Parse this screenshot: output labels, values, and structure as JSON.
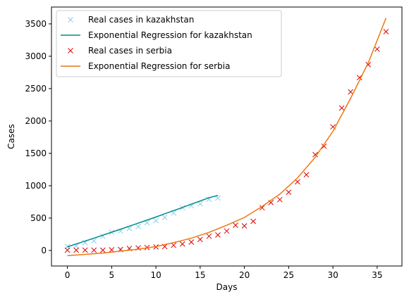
{
  "chart_data": {
    "type": "scatter",
    "title": "",
    "xlabel": "Days",
    "ylabel": "Cases",
    "xlim": [
      -1.8,
      37.8
    ],
    "ylim": [
      -240,
      3760
    ],
    "xticks": [
      0,
      5,
      10,
      15,
      20,
      25,
      30,
      35
    ],
    "yticks": [
      0,
      500,
      1000,
      1500,
      2000,
      2500,
      3000,
      3500
    ],
    "grid": false,
    "legend_position": "top-left",
    "series": [
      {
        "name": "Real cases in kazakhstan",
        "kind": "marker",
        "marker": "x",
        "color": "#87ceeb",
        "x": [
          0,
          1,
          2,
          3,
          4,
          5,
          6,
          7,
          8,
          9,
          10,
          11,
          12,
          13,
          14,
          15,
          16,
          17
        ],
        "y": [
          60,
          70,
          120,
          150,
          220,
          280,
          300,
          340,
          370,
          430,
          460,
          510,
          580,
          660,
          690,
          720,
          790,
          810
        ]
      },
      {
        "name": "Exponential Regression for kazakhstan",
        "kind": "line",
        "color": "#008b8b",
        "x": [
          0,
          1,
          2,
          3,
          4,
          5,
          6,
          7,
          8,
          9,
          10,
          11,
          12,
          13,
          14,
          15,
          16,
          17
        ],
        "y": [
          55,
          100,
          145,
          190,
          236,
          282,
          328,
          375,
          422,
          469,
          517,
          566,
          615,
          664,
          714,
          764,
          815,
          850
        ]
      },
      {
        "name": "Real cases in serbia",
        "kind": "marker",
        "marker": "x",
        "color": "#dd0000",
        "x": [
          0,
          1,
          2,
          3,
          4,
          5,
          6,
          7,
          8,
          9,
          10,
          11,
          12,
          13,
          14,
          15,
          16,
          17,
          18,
          19,
          20,
          21,
          22,
          23,
          24,
          25,
          26,
          27,
          28,
          29,
          30,
          31,
          32,
          33,
          34,
          35,
          36
        ],
        "y": [
          5,
          5,
          5,
          5,
          5,
          10,
          15,
          30,
          40,
          45,
          55,
          60,
          80,
          100,
          130,
          170,
          220,
          240,
          300,
          390,
          380,
          450,
          660,
          740,
          785,
          900,
          1060,
          1170,
          1480,
          1610,
          1910,
          2200,
          2450,
          2670,
          2870,
          3110,
          3380
        ]
      },
      {
        "name": "Exponential Regression for serbia",
        "kind": "line",
        "color": "#ee7711",
        "x": [
          0,
          2,
          4,
          6,
          8,
          10,
          12,
          14,
          16,
          18,
          20,
          22,
          24,
          26,
          28,
          30,
          32,
          34,
          36
        ],
        "y": [
          -80,
          -60,
          -40,
          -10,
          20,
          60,
          120,
          190,
          280,
          390,
          510,
          680,
          870,
          1120,
          1440,
          1840,
          2350,
          2900,
          3590
        ]
      }
    ]
  }
}
